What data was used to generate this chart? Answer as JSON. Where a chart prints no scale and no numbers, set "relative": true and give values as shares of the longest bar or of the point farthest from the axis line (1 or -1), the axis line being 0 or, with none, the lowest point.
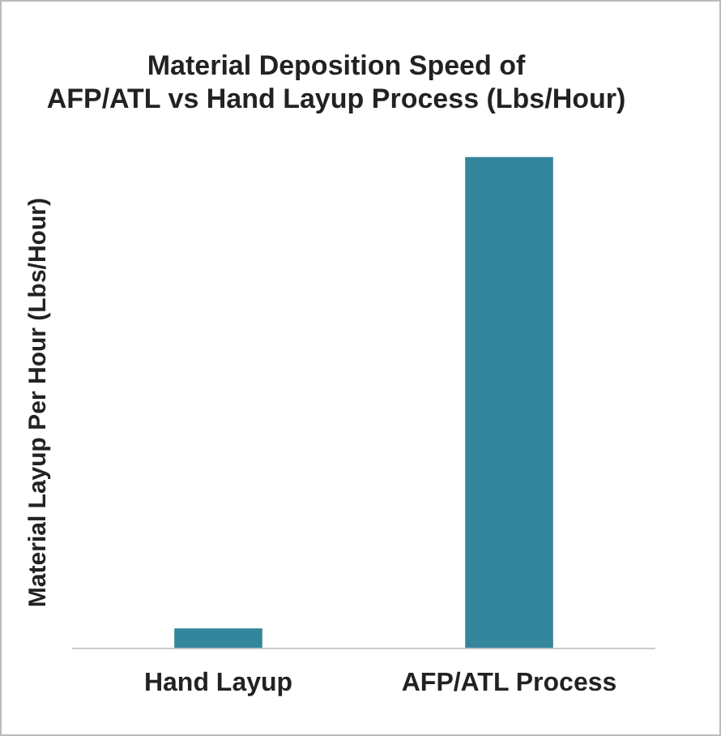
{
  "chart_data": {
    "type": "bar",
    "title": [
      "Material Deposition Speed of",
      "AFP/ATL vs Hand Layup Process (Lbs/Hour)"
    ],
    "ylabel": "Material Layup Per Hour (Lbs/Hour)",
    "categories": [
      "Hand Layup",
      "AFP/ATL Process"
    ],
    "values": [
      0.04,
      1
    ],
    "color": "#33869b",
    "relative": true,
    "grid": false,
    "legend": false
  }
}
